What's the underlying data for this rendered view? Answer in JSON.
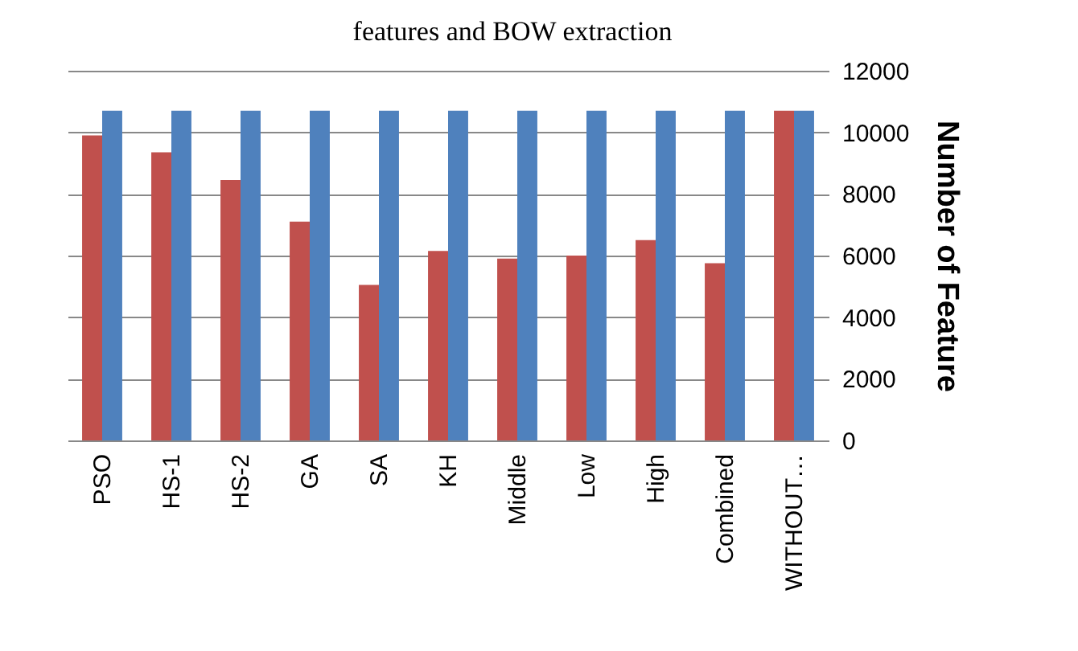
{
  "chart_data": {
    "type": "bar",
    "title": "features and BOW extraction",
    "ylabel": "Number of Feature",
    "categories": [
      "PSO",
      "HS-1",
      "HS-2",
      "GA",
      "SA",
      "KH",
      "Middle",
      "Low",
      "High",
      "Combined",
      "WITHOUT…"
    ],
    "series": [
      {
        "color": "#c0504d",
        "values": [
          9900,
          9350,
          8450,
          7100,
          5050,
          6150,
          5900,
          6000,
          6500,
          5750,
          10700
        ]
      },
      {
        "color": "#4f81bd",
        "values": [
          10700,
          10700,
          10700,
          10700,
          10700,
          10700,
          10700,
          10700,
          10700,
          10700,
          10700
        ]
      }
    ],
    "ylim": [
      0,
      12000
    ],
    "yticks": [
      0,
      2000,
      4000,
      6000,
      8000,
      10000,
      12000
    ],
    "grid": "y",
    "legend": false
  }
}
